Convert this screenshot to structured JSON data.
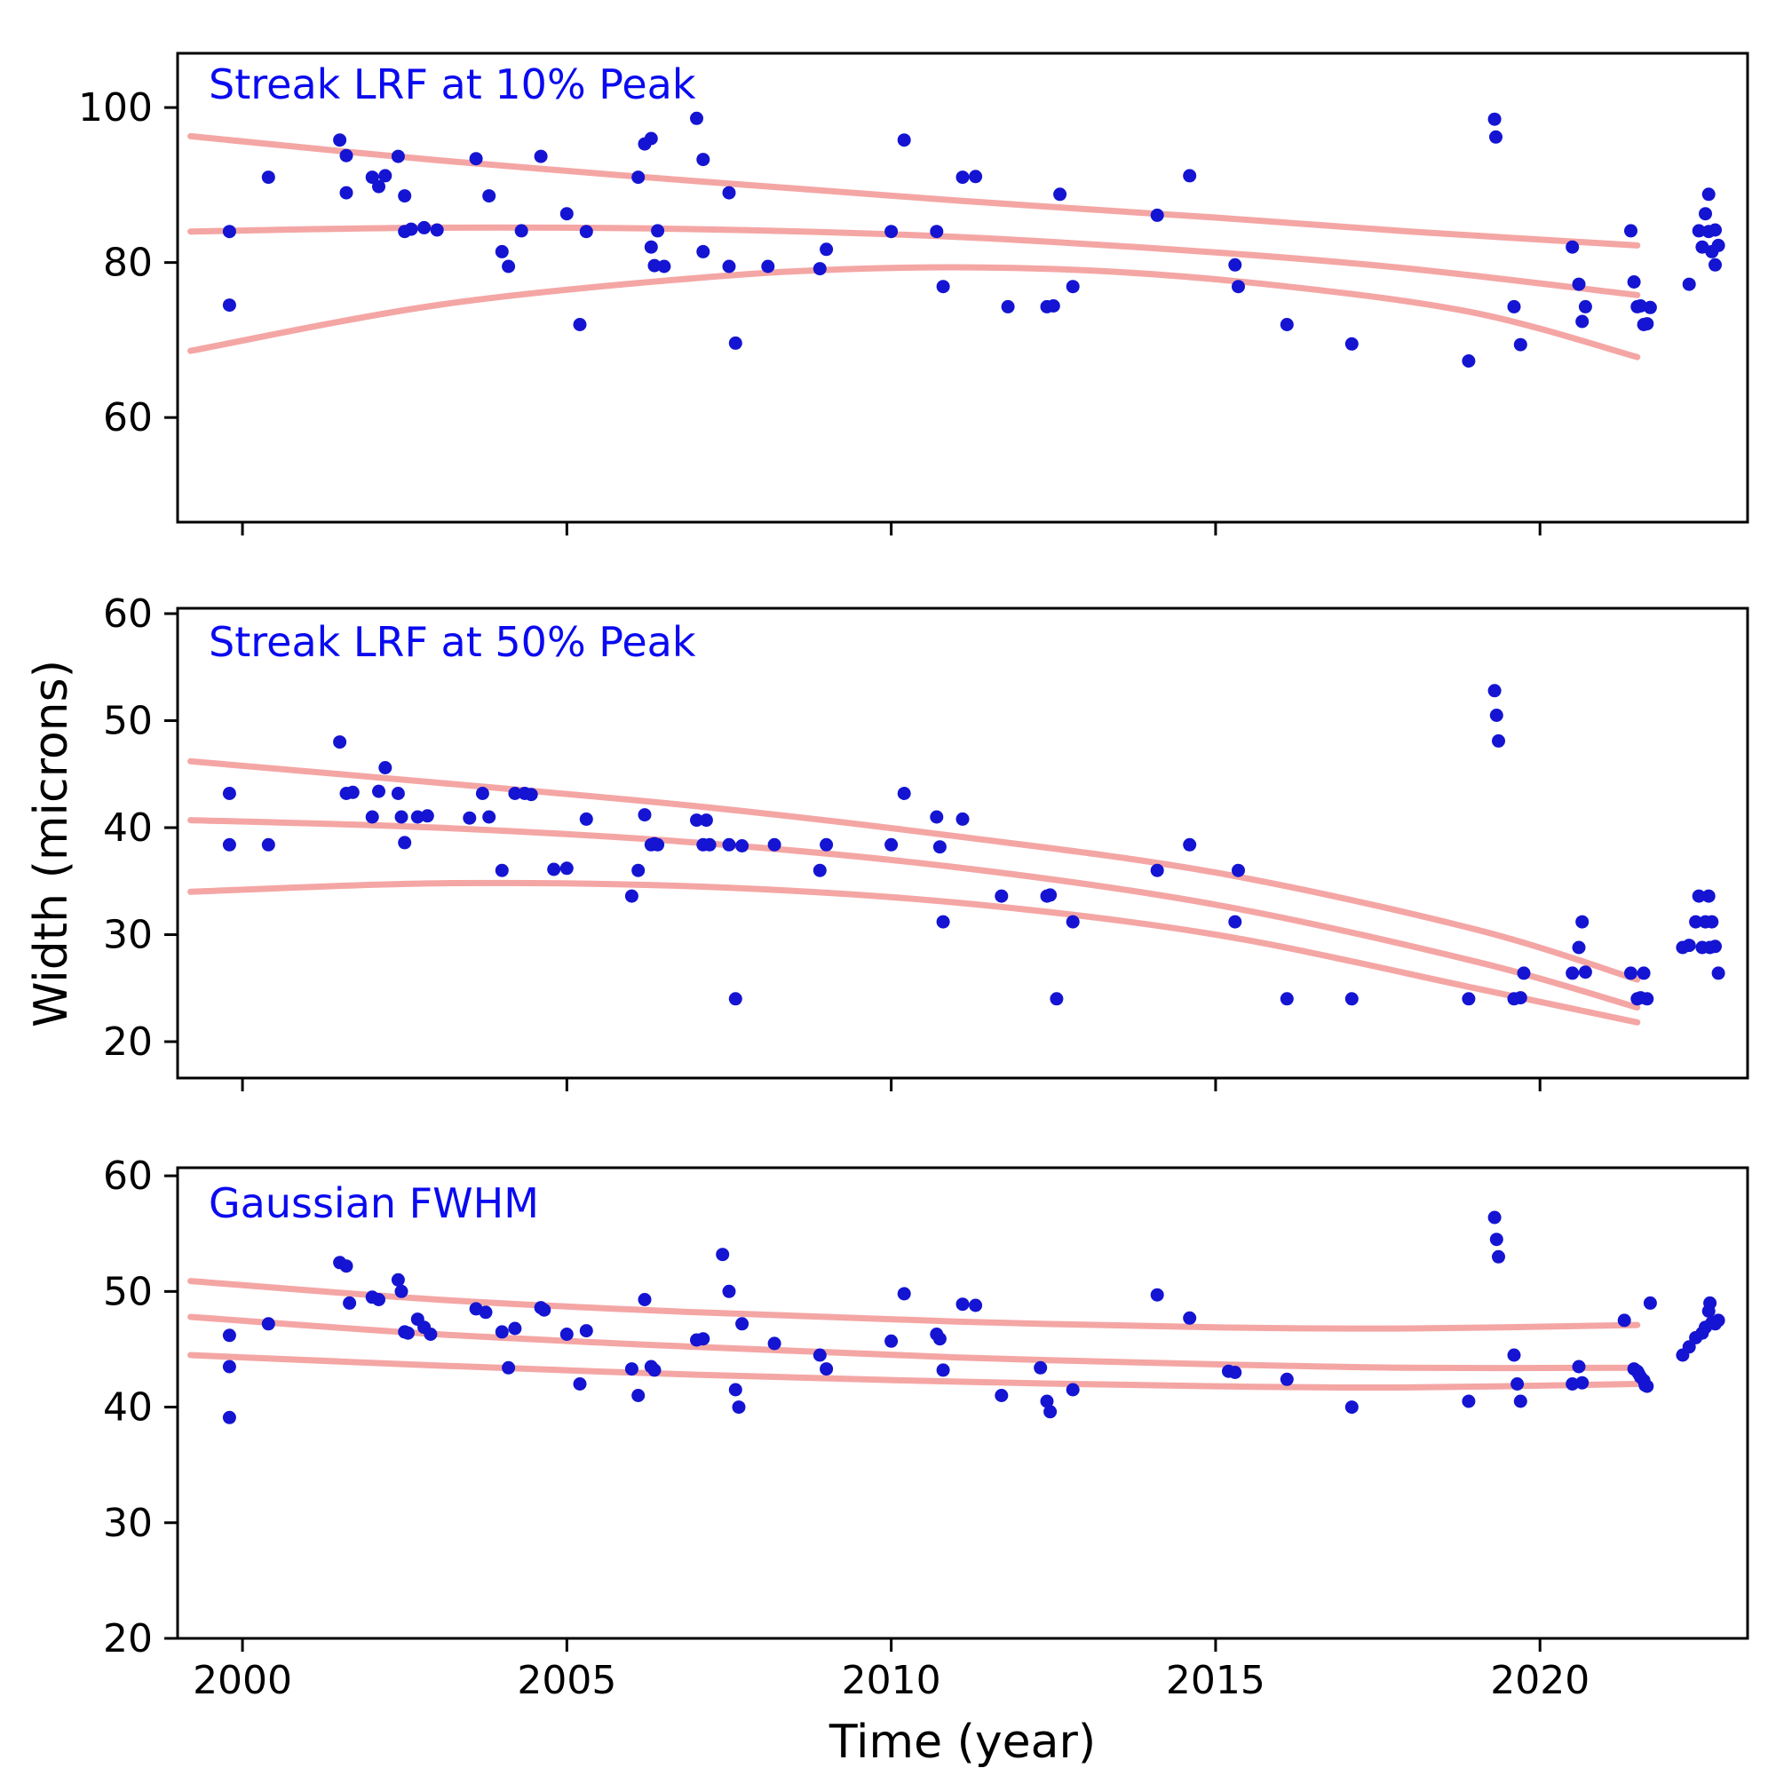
{
  "figure": {
    "background": "#ffffff",
    "point_color": "#1414d2",
    "curve_color": "#f4a6a4",
    "title_color": "#0a0af0",
    "axis_color": "#000000",
    "xlabel": "Time (year)",
    "ylabel": "Width (microns)"
  },
  "chart_data": [
    {
      "type": "scatter",
      "title": "Streak LRF at 10% Peak",
      "xlim": [
        1999.0,
        2023.2
      ],
      "ylim": [
        46.5,
        107.0
      ],
      "xticks": [
        2000,
        2005,
        2010,
        2015,
        2020
      ],
      "yticks": [
        60,
        80,
        100
      ],
      "show_xtick_labels": false,
      "points": [
        [
          1999.8,
          84
        ],
        [
          1999.8,
          74.5
        ],
        [
          2000.4,
          91
        ],
        [
          2001.5,
          95.8
        ],
        [
          2001.6,
          93.8
        ],
        [
          2001.6,
          89
        ],
        [
          2002.0,
          91
        ],
        [
          2002.1,
          89.8
        ],
        [
          2002.2,
          91.2
        ],
        [
          2002.4,
          93.7
        ],
        [
          2002.5,
          88.6
        ],
        [
          2002.5,
          84
        ],
        [
          2002.6,
          84.3
        ],
        [
          2002.8,
          84.5
        ],
        [
          2003.0,
          84.2
        ],
        [
          2003.6,
          93.4
        ],
        [
          2003.8,
          88.6
        ],
        [
          2004.0,
          81.4
        ],
        [
          2004.1,
          79.5
        ],
        [
          2004.3,
          84.1
        ],
        [
          2004.6,
          93.7
        ],
        [
          2005.0,
          86.3
        ],
        [
          2005.2,
          72
        ],
        [
          2005.3,
          84
        ],
        [
          2006.1,
          91
        ],
        [
          2006.2,
          95.3
        ],
        [
          2006.3,
          96
        ],
        [
          2006.3,
          82
        ],
        [
          2006.35,
          79.6
        ],
        [
          2006.4,
          84.1
        ],
        [
          2006.5,
          79.5
        ],
        [
          2007.0,
          98.6
        ],
        [
          2007.1,
          93.3
        ],
        [
          2007.1,
          81.4
        ],
        [
          2007.5,
          89
        ],
        [
          2007.5,
          79.5
        ],
        [
          2007.6,
          69.6
        ],
        [
          2008.1,
          79.5
        ],
        [
          2008.9,
          79.2
        ],
        [
          2009.0,
          81.7
        ],
        [
          2010.0,
          84
        ],
        [
          2010.2,
          95.8
        ],
        [
          2010.7,
          84
        ],
        [
          2010.8,
          76.9
        ],
        [
          2011.1,
          91
        ],
        [
          2011.3,
          91.1
        ],
        [
          2011.8,
          74.3
        ],
        [
          2012.4,
          74.3
        ],
        [
          2012.5,
          74.4
        ],
        [
          2012.6,
          88.8
        ],
        [
          2012.8,
          76.9
        ],
        [
          2014.1,
          86.1
        ],
        [
          2014.6,
          91.2
        ],
        [
          2015.3,
          79.7
        ],
        [
          2015.35,
          76.9
        ],
        [
          2016.1,
          72
        ],
        [
          2017.1,
          69.5
        ],
        [
          2018.9,
          67.3
        ],
        [
          2019.3,
          98.5
        ],
        [
          2019.32,
          96.2
        ],
        [
          2019.6,
          74.3
        ],
        [
          2019.7,
          69.4
        ],
        [
          2020.5,
          82
        ],
        [
          2020.6,
          77.2
        ],
        [
          2020.65,
          72.4
        ],
        [
          2020.7,
          74.3
        ],
        [
          2021.4,
          84.1
        ],
        [
          2021.45,
          77.5
        ],
        [
          2021.5,
          74.3
        ],
        [
          2021.55,
          74.4
        ],
        [
          2021.6,
          72
        ],
        [
          2021.65,
          72.1
        ],
        [
          2021.7,
          74.2
        ],
        [
          2022.3,
          77.2
        ],
        [
          2022.45,
          84.1
        ],
        [
          2022.5,
          82
        ],
        [
          2022.55,
          86.3
        ],
        [
          2022.6,
          88.8
        ],
        [
          2022.6,
          84
        ],
        [
          2022.65,
          81.4
        ],
        [
          2022.7,
          84.2
        ],
        [
          2022.7,
          79.7
        ],
        [
          2022.75,
          82.2
        ]
      ],
      "trend_curves": [
        [
          [
            1999.2,
            96.3
          ],
          [
            2003,
            93.2
          ],
          [
            2007,
            90.5
          ],
          [
            2011,
            88.0
          ],
          [
            2015,
            85.8
          ],
          [
            2018,
            84.0
          ],
          [
            2021.5,
            82.2
          ]
        ],
        [
          [
            1999.2,
            84.0
          ],
          [
            2003,
            84.5
          ],
          [
            2007,
            84.3
          ],
          [
            2011,
            83.3
          ],
          [
            2015,
            81.3
          ],
          [
            2018,
            79.2
          ],
          [
            2021.5,
            75.8
          ]
        ],
        [
          [
            1999.2,
            68.6
          ],
          [
            2003,
            74.5
          ],
          [
            2007,
            78.0
          ],
          [
            2010,
            79.3
          ],
          [
            2013,
            79.0
          ],
          [
            2016,
            77.0
          ],
          [
            2019,
            73.5
          ],
          [
            2021.5,
            67.8
          ]
        ]
      ]
    },
    {
      "type": "scatter",
      "title": "Streak LRF at 50% Peak",
      "xlim": [
        1999.0,
        2023.2
      ],
      "ylim": [
        16.6,
        60.5
      ],
      "xticks": [
        2000,
        2005,
        2010,
        2015,
        2020
      ],
      "yticks": [
        20,
        30,
        40,
        50,
        60
      ],
      "show_xtick_labels": false,
      "points": [
        [
          1999.8,
          43.2
        ],
        [
          1999.8,
          38.4
        ],
        [
          2000.4,
          38.4
        ],
        [
          2001.5,
          48
        ],
        [
          2001.6,
          43.2
        ],
        [
          2001.7,
          43.3
        ],
        [
          2002.0,
          41
        ],
        [
          2002.1,
          43.4
        ],
        [
          2002.2,
          45.6
        ],
        [
          2002.4,
          43.2
        ],
        [
          2002.45,
          41
        ],
        [
          2002.5,
          38.6
        ],
        [
          2002.7,
          41
        ],
        [
          2002.85,
          41.1
        ],
        [
          2003.5,
          40.9
        ],
        [
          2003.7,
          43.2
        ],
        [
          2003.8,
          41
        ],
        [
          2004.0,
          36
        ],
        [
          2004.2,
          43.2
        ],
        [
          2004.35,
          43.2
        ],
        [
          2004.45,
          43.1
        ],
        [
          2004.8,
          36.1
        ],
        [
          2005.0,
          36.2
        ],
        [
          2005.3,
          40.8
        ],
        [
          2006.0,
          33.6
        ],
        [
          2006.1,
          36
        ],
        [
          2006.2,
          41.2
        ],
        [
          2006.3,
          38.4
        ],
        [
          2006.35,
          38.5
        ],
        [
          2006.4,
          38.4
        ],
        [
          2007.0,
          40.7
        ],
        [
          2007.1,
          38.4
        ],
        [
          2007.15,
          40.7
        ],
        [
          2007.2,
          38.4
        ],
        [
          2007.5,
          38.4
        ],
        [
          2007.6,
          24
        ],
        [
          2007.7,
          38.3
        ],
        [
          2008.2,
          38.4
        ],
        [
          2008.9,
          36
        ],
        [
          2009.0,
          38.4
        ],
        [
          2010.0,
          38.4
        ],
        [
          2010.2,
          43.2
        ],
        [
          2010.7,
          41
        ],
        [
          2010.75,
          38.2
        ],
        [
          2010.8,
          31.2
        ],
        [
          2011.1,
          40.8
        ],
        [
          2011.7,
          33.6
        ],
        [
          2012.4,
          33.6
        ],
        [
          2012.45,
          33.7
        ],
        [
          2012.55,
          24
        ],
        [
          2012.8,
          31.2
        ],
        [
          2014.1,
          36
        ],
        [
          2014.6,
          38.4
        ],
        [
          2015.3,
          31.2
        ],
        [
          2015.35,
          36
        ],
        [
          2016.1,
          24
        ],
        [
          2017.1,
          24
        ],
        [
          2018.9,
          24
        ],
        [
          2019.3,
          52.8
        ],
        [
          2019.33,
          50.5
        ],
        [
          2019.36,
          48.1
        ],
        [
          2019.6,
          24
        ],
        [
          2019.7,
          24.1
        ],
        [
          2019.75,
          26.4
        ],
        [
          2020.5,
          26.4
        ],
        [
          2020.6,
          28.8
        ],
        [
          2020.65,
          31.2
        ],
        [
          2020.7,
          26.5
        ],
        [
          2021.4,
          26.4
        ],
        [
          2021.5,
          24
        ],
        [
          2021.55,
          24.1
        ],
        [
          2021.6,
          26.4
        ],
        [
          2021.65,
          24
        ],
        [
          2022.2,
          28.8
        ],
        [
          2022.3,
          29
        ],
        [
          2022.4,
          31.2
        ],
        [
          2022.45,
          33.6
        ],
        [
          2022.5,
          28.8
        ],
        [
          2022.55,
          31.2
        ],
        [
          2022.6,
          33.6
        ],
        [
          2022.62,
          28.8
        ],
        [
          2022.65,
          31.2
        ],
        [
          2022.7,
          28.9
        ],
        [
          2022.75,
          26.4
        ]
      ],
      "trend_curves": [
        [
          [
            1999.2,
            46.2
          ],
          [
            2003,
            44.2
          ],
          [
            2007,
            42.0
          ],
          [
            2011,
            39.2
          ],
          [
            2015,
            35.8
          ],
          [
            2019,
            30.5
          ],
          [
            2021.5,
            25.8
          ]
        ],
        [
          [
            1999.2,
            40.7
          ],
          [
            2003,
            40.0
          ],
          [
            2007,
            38.6
          ],
          [
            2011,
            36.3
          ],
          [
            2015,
            32.8
          ],
          [
            2019,
            27.5
          ],
          [
            2021.5,
            23.2
          ]
        ],
        [
          [
            1999.2,
            34.0
          ],
          [
            2003,
            34.8
          ],
          [
            2007,
            34.5
          ],
          [
            2011,
            33.0
          ],
          [
            2015,
            30.0
          ],
          [
            2019,
            25.0
          ],
          [
            2021.5,
            21.8
          ]
        ]
      ]
    },
    {
      "type": "scatter",
      "title": "Gaussian FWHM",
      "xlim": [
        1999.0,
        2023.2
      ],
      "ylim": [
        20.0,
        60.7
      ],
      "xticks": [
        2000,
        2005,
        2010,
        2015,
        2020
      ],
      "yticks": [
        20,
        30,
        40,
        50,
        60
      ],
      "show_xtick_labels": true,
      "points": [
        [
          1999.8,
          46.2
        ],
        [
          1999.8,
          43.5
        ],
        [
          1999.8,
          39.1
        ],
        [
          2000.4,
          47.2
        ],
        [
          2001.5,
          52.5
        ],
        [
          2001.6,
          52.2
        ],
        [
          2001.65,
          49
        ],
        [
          2002.0,
          49.5
        ],
        [
          2002.1,
          49.3
        ],
        [
          2002.4,
          51
        ],
        [
          2002.45,
          50
        ],
        [
          2002.5,
          46.5
        ],
        [
          2002.55,
          46.4
        ],
        [
          2002.7,
          47.6
        ],
        [
          2002.8,
          46.9
        ],
        [
          2002.9,
          46.3
        ],
        [
          2003.6,
          48.5
        ],
        [
          2003.75,
          48.2
        ],
        [
          2004.0,
          46.5
        ],
        [
          2004.1,
          43.4
        ],
        [
          2004.2,
          46.8
        ],
        [
          2004.6,
          48.6
        ],
        [
          2004.65,
          48.4
        ],
        [
          2005.0,
          46.3
        ],
        [
          2005.2,
          42
        ],
        [
          2005.3,
          46.6
        ],
        [
          2006.0,
          43.3
        ],
        [
          2006.1,
          41
        ],
        [
          2006.2,
          49.3
        ],
        [
          2006.3,
          43.5
        ],
        [
          2006.35,
          43.2
        ],
        [
          2007.0,
          45.8
        ],
        [
          2007.1,
          45.9
        ],
        [
          2007.4,
          53.2
        ],
        [
          2007.5,
          50
        ],
        [
          2007.6,
          41.5
        ],
        [
          2007.65,
          40
        ],
        [
          2007.7,
          47.2
        ],
        [
          2008.2,
          45.5
        ],
        [
          2008.9,
          44.5
        ],
        [
          2009.0,
          43.3
        ],
        [
          2010.0,
          45.7
        ],
        [
          2010.2,
          49.8
        ],
        [
          2010.7,
          46.3
        ],
        [
          2010.75,
          45.9
        ],
        [
          2010.8,
          43.2
        ],
        [
          2011.1,
          48.9
        ],
        [
          2011.3,
          48.8
        ],
        [
          2011.7,
          41
        ],
        [
          2012.3,
          43.4
        ],
        [
          2012.4,
          40.5
        ],
        [
          2012.45,
          39.6
        ],
        [
          2012.8,
          41.5
        ],
        [
          2014.1,
          49.7
        ],
        [
          2014.6,
          47.7
        ],
        [
          2015.2,
          43.1
        ],
        [
          2015.3,
          43
        ],
        [
          2016.1,
          42.4
        ],
        [
          2017.1,
          40
        ],
        [
          2018.9,
          40.5
        ],
        [
          2019.3,
          56.4
        ],
        [
          2019.33,
          54.5
        ],
        [
          2019.36,
          53
        ],
        [
          2019.6,
          44.5
        ],
        [
          2019.65,
          42
        ],
        [
          2019.7,
          40.5
        ],
        [
          2020.5,
          42
        ],
        [
          2020.6,
          43.5
        ],
        [
          2020.65,
          42.1
        ],
        [
          2021.3,
          47.5
        ],
        [
          2021.45,
          43.3
        ],
        [
          2021.5,
          43.1
        ],
        [
          2021.52,
          42.9
        ],
        [
          2021.55,
          42.6
        ],
        [
          2021.6,
          42.3
        ],
        [
          2021.62,
          41.9
        ],
        [
          2021.65,
          41.8
        ],
        [
          2021.7,
          49
        ],
        [
          2022.2,
          44.5
        ],
        [
          2022.3,
          45.2
        ],
        [
          2022.4,
          46
        ],
        [
          2022.5,
          46.4
        ],
        [
          2022.55,
          46.9
        ],
        [
          2022.6,
          48.3
        ],
        [
          2022.62,
          49
        ],
        [
          2022.65,
          47.3
        ],
        [
          2022.7,
          47.2
        ],
        [
          2022.75,
          47.5
        ]
      ],
      "trend_curves": [
        [
          [
            1999.2,
            50.9
          ],
          [
            2003,
            49.3
          ],
          [
            2007,
            48.2
          ],
          [
            2011,
            47.4
          ],
          [
            2015,
            46.9
          ],
          [
            2018,
            46.8
          ],
          [
            2021.5,
            47.1
          ]
        ],
        [
          [
            1999.2,
            47.8
          ],
          [
            2003,
            46.3
          ],
          [
            2007,
            45.2
          ],
          [
            2011,
            44.3
          ],
          [
            2015,
            43.7
          ],
          [
            2018,
            43.4
          ],
          [
            2021.5,
            43.4
          ]
        ],
        [
          [
            1999.2,
            44.5
          ],
          [
            2003,
            43.6
          ],
          [
            2007,
            42.8
          ],
          [
            2011,
            42.2
          ],
          [
            2015,
            41.8
          ],
          [
            2018,
            41.7
          ],
          [
            2021.5,
            42.0
          ]
        ]
      ]
    }
  ]
}
